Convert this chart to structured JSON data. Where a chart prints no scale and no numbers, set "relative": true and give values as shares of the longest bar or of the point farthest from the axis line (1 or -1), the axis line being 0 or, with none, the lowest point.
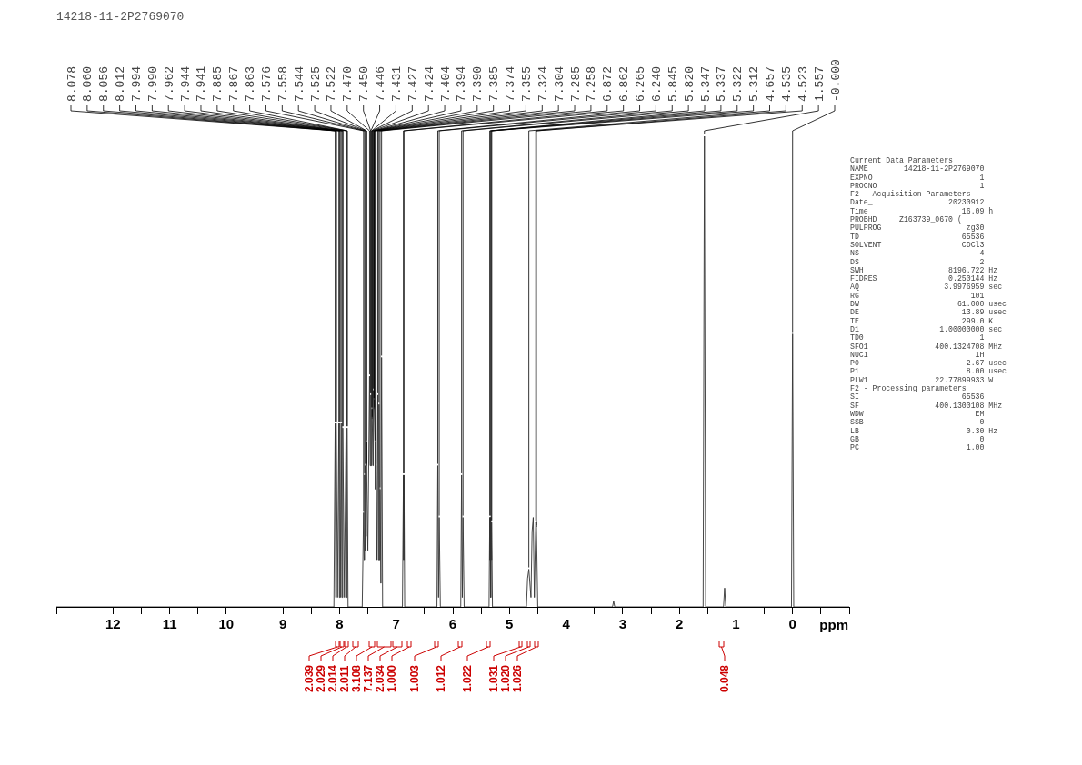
{
  "chart_data": {
    "type": "line",
    "title": "14218-11-2P2769070",
    "xlabel": "ppm",
    "relative": true,
    "xlim": [
      13,
      -1
    ],
    "xticks": [
      {
        "value": 13,
        "label": null
      },
      {
        "value": 12.5,
        "label": null
      },
      12,
      {
        "value": 11.5,
        "label": null
      },
      11,
      {
        "value": 10.5,
        "label": null
      },
      10,
      {
        "value": 9.5,
        "label": null
      },
      9,
      {
        "value": 8.5,
        "label": null
      },
      8,
      {
        "value": 7.5,
        "label": null
      },
      7,
      {
        "value": 6.5,
        "label": null
      },
      6,
      {
        "value": 5.5,
        "label": null
      },
      5,
      {
        "value": 4.5,
        "label": null
      },
      4,
      {
        "value": 3.5,
        "label": null
      },
      3,
      {
        "value": 2.5,
        "label": null
      },
      2,
      {
        "value": 1.5,
        "label": null
      },
      1,
      {
        "value": 0.5,
        "label": null
      },
      0,
      {
        "value": -0.5,
        "label": null
      },
      {
        "value": -1,
        "label": null
      }
    ],
    "grid": false,
    "legend": false,
    "marker": "none",
    "line_style": "solid",
    "series": [
      {
        "color": "#333333",
        "x": [
          13,
          8.1,
          8.078,
          8.069,
          8.06,
          8.036,
          8.012,
          8.003,
          7.994,
          7.978,
          7.962,
          7.953,
          7.944,
          7.914,
          7.885,
          7.876,
          7.867,
          7.85,
          7.6,
          7.576,
          7.565,
          7.558,
          7.55,
          7.544,
          7.53,
          7.525,
          7.522,
          7.5,
          7.47,
          7.46,
          7.45,
          7.446,
          7.44,
          7.431,
          7.427,
          7.424,
          7.41,
          7.404,
          7.394,
          7.39,
          7.385,
          7.374,
          7.365,
          7.355,
          7.34,
          7.324,
          7.314,
          7.304,
          7.295,
          7.285,
          7.27,
          7.258,
          7.24,
          6.89,
          6.872,
          6.867,
          6.862,
          6.85,
          6.28,
          6.265,
          6.252,
          6.24,
          6.22,
          5.86,
          5.845,
          5.832,
          5.82,
          5.8,
          5.36,
          5.347,
          5.342,
          5.337,
          5.33,
          5.322,
          5.317,
          5.312,
          5.3,
          4.7,
          4.68,
          4.657,
          4.62,
          4.6,
          4.58,
          4.56,
          4.535,
          4.523,
          4.5,
          3.18,
          3.16,
          3.14,
          1.58,
          1.557,
          1.535,
          1.22,
          1.2,
          1.18,
          0.02,
          0,
          -0.02,
          -1
        ],
        "values": [
          0,
          0,
          0.39,
          0.02,
          0.39,
          0.02,
          0.39,
          0.02,
          0.39,
          0.02,
          0.39,
          0.02,
          0.38,
          0.02,
          0.38,
          0.02,
          0.38,
          0,
          0,
          0.2,
          0.1,
          0.28,
          0.12,
          0.3,
          0.15,
          0.35,
          0.3,
          0.12,
          0.49,
          0.3,
          0.45,
          0.45,
          0.3,
          0.42,
          0.42,
          0.4,
          0.3,
          0.46,
          0.44,
          0.44,
          0.42,
          0.35,
          0.25,
          0.3,
          0.1,
          0.45,
          0.1,
          0.43,
          0.1,
          0.25,
          0.05,
          0.53,
          0,
          0,
          0.28,
          0.1,
          0.28,
          0,
          0,
          0.3,
          0.02,
          0.19,
          0,
          0,
          0.28,
          0.02,
          0.19,
          0,
          0,
          0.19,
          0.1,
          0.19,
          0.02,
          0.18,
          0.1,
          0.18,
          0,
          0,
          0.06,
          0.08,
          0.02,
          0.16,
          0.19,
          0.02,
          0.18,
          0.17,
          0,
          0,
          0.012,
          0,
          0,
          1,
          0,
          0,
          0.04,
          0,
          0,
          0.58,
          0,
          0
        ]
      }
    ],
    "annotations": [
      {
        "text": "8.078",
        "x": 8.078,
        "y": 0.39
      },
      {
        "text": "8.060",
        "x": 8.06,
        "y": 0.39
      },
      {
        "text": "8.056",
        "x": 8.056,
        "y": 0.39
      },
      {
        "text": "8.012",
        "x": 8.012,
        "y": 0.39
      },
      {
        "text": "7.994",
        "x": 7.994,
        "y": 0.39
      },
      {
        "text": "7.990",
        "x": 7.99,
        "y": 0.39
      },
      {
        "text": "7.962",
        "x": 7.962,
        "y": 0.39
      },
      {
        "text": "7.944",
        "x": 7.944,
        "y": 0.38
      },
      {
        "text": "7.941",
        "x": 7.941,
        "y": 0.38
      },
      {
        "text": "7.885",
        "x": 7.885,
        "y": 0.38
      },
      {
        "text": "7.867",
        "x": 7.867,
        "y": 0.38
      },
      {
        "text": "7.863",
        "x": 7.863,
        "y": 0.38
      },
      {
        "text": "7.576",
        "x": 7.576,
        "y": 0.2
      },
      {
        "text": "7.558",
        "x": 7.558,
        "y": 0.28
      },
      {
        "text": "7.544",
        "x": 7.544,
        "y": 0.3
      },
      {
        "text": "7.525",
        "x": 7.525,
        "y": 0.35
      },
      {
        "text": "7.522",
        "x": 7.522,
        "y": 0.3
      },
      {
        "text": "7.470",
        "x": 7.47,
        "y": 0.49
      },
      {
        "text": "7.450",
        "x": 7.45,
        "y": 0.45
      },
      {
        "text": "7.446",
        "x": 7.446,
        "y": 0.45
      },
      {
        "text": "7.431",
        "x": 7.431,
        "y": 0.42
      },
      {
        "text": "7.427",
        "x": 7.427,
        "y": 0.42
      },
      {
        "text": "7.424",
        "x": 7.424,
        "y": 0.4
      },
      {
        "text": "7.404",
        "x": 7.404,
        "y": 0.46
      },
      {
        "text": "7.394",
        "x": 7.394,
        "y": 0.44
      },
      {
        "text": "7.390",
        "x": 7.39,
        "y": 0.44
      },
      {
        "text": "7.385",
        "x": 7.385,
        "y": 0.42
      },
      {
        "text": "7.374",
        "x": 7.374,
        "y": 0.35
      },
      {
        "text": "7.355",
        "x": 7.355,
        "y": 0.3
      },
      {
        "text": "7.324",
        "x": 7.324,
        "y": 0.45
      },
      {
        "text": "7.304",
        "x": 7.304,
        "y": 0.43
      },
      {
        "text": "7.285",
        "x": 7.285,
        "y": 0.25
      },
      {
        "text": "7.258",
        "x": 7.258,
        "y": 0.53
      },
      {
        "text": "6.872",
        "x": 6.872,
        "y": 0.28
      },
      {
        "text": "6.862",
        "x": 6.862,
        "y": 0.28
      },
      {
        "text": "6.265",
        "x": 6.265,
        "y": 0.3
      },
      {
        "text": "6.240",
        "x": 6.24,
        "y": 0.19
      },
      {
        "text": "5.845",
        "x": 5.845,
        "y": 0.28
      },
      {
        "text": "5.820",
        "x": 5.82,
        "y": 0.19
      },
      {
        "text": "5.347",
        "x": 5.347,
        "y": 0.19
      },
      {
        "text": "5.337",
        "x": 5.337,
        "y": 0.19
      },
      {
        "text": "5.322",
        "x": 5.322,
        "y": 0.18
      },
      {
        "text": "5.312",
        "x": 5.312,
        "y": 0.18
      },
      {
        "text": "4.657",
        "x": 4.657,
        "y": 0.08
      },
      {
        "text": "4.535",
        "x": 4.535,
        "y": 0.18
      },
      {
        "text": "4.523",
        "x": 4.523,
        "y": 0.17
      },
      {
        "text": "1.557",
        "x": 1.557,
        "y": 1
      },
      {
        "text": "-0.000",
        "x": 0,
        "y": 0.58
      },
      "2.039",
      "2.029",
      "2.014",
      "2.011",
      "3.108",
      "7.137",
      "2.034",
      "1.000",
      "1.003",
      "1.012",
      "1.022",
      "1.031",
      "1.020",
      "1.026",
      "0.048",
      "Current Data Parameters",
      "NAME        14218-11-2P2769070",
      "EXPNO                        1",
      "PROCNO                       1",
      "F2 - Acquisition Parameters",
      "Date_                 20230912",
      "Time                     16.09 h",
      "PROBHD     Z163739_0670 (",
      "PULPROG                   zg30",
      "TD                       65536",
      "SOLVENT                  CDCl3",
      "NS                           4",
      "DS                           2",
      "SWH                   8196.722 Hz",
      "FIDRES                0.250144 Hz",
      "AQ                   3.9976959 sec",
      "RG                         101",
      "DW                      61.000 usec",
      "DE                       13.89 usec",
      "TE                       299.0 K",
      "D1                  1.00000000 sec",
      "TD0                          1",
      "SFO1               400.1324708 MHz",
      "NUC1                        1H",
      "P0                        2.67 usec",
      "P1                        8.00 usec",
      "PLW1               22.77899933 W",
      "F2 - Processing parameters",
      "SI                       65536",
      "SF                 400.1300108 MHz",
      "WDW                         EM",
      "SSB                          0",
      "LB                        0.30 Hz",
      "GB                           0",
      "PC                        1.00"
    ]
  }
}
